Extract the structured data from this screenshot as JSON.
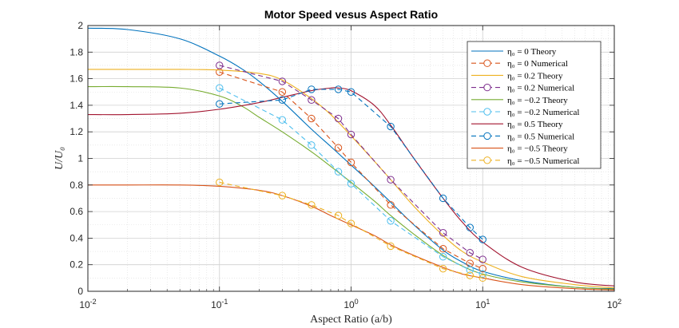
{
  "chart_data": {
    "type": "line",
    "title": "Motor Speed vesus Aspect Ratio",
    "xlabel": "Aspect Ratio (a/b)",
    "ylabel": "U/U₀",
    "xscale": "log",
    "xlim": [
      0.01,
      100
    ],
    "ylim": [
      0,
      2
    ],
    "x_ticks": [
      {
        "value": 0.01,
        "base": "10",
        "exp": "-2"
      },
      {
        "value": 0.1,
        "base": "10",
        "exp": "-1"
      },
      {
        "value": 1,
        "base": "10",
        "exp": "0"
      },
      {
        "value": 10,
        "base": "10",
        "exp": "1"
      },
      {
        "value": 100,
        "base": "10",
        "exp": "2"
      }
    ],
    "y_ticks": [
      "0",
      "0.2",
      "0.4",
      "0.6",
      "0.8",
      "1",
      "1.2",
      "1.4",
      "1.6",
      "1.8",
      "2"
    ],
    "grid": true,
    "legend_position": "top-right",
    "series": [
      {
        "name": "η₀ = 0 Theory",
        "color": "#0072BD",
        "style": "solid",
        "x": [
          0.01,
          0.02,
          0.05,
          0.1,
          0.15,
          0.2,
          0.3,
          0.5,
          0.7,
          1,
          1.5,
          2,
          3,
          5,
          7,
          10,
          20,
          50,
          100
        ],
        "y": [
          1.98,
          1.97,
          1.9,
          1.77,
          1.67,
          1.58,
          1.43,
          1.22,
          1.09,
          0.95,
          0.79,
          0.67,
          0.5,
          0.31,
          0.22,
          0.15,
          0.08,
          0.03,
          0.02
        ]
      },
      {
        "name": "η₀ = 0 Numerical",
        "color": "#D95319",
        "style": "dashed",
        "marker": "circle",
        "x": [
          0.1,
          0.3,
          0.5,
          0.8,
          1,
          2,
          5,
          8,
          10
        ],
        "y": [
          1.65,
          1.5,
          1.3,
          1.08,
          0.97,
          0.65,
          0.32,
          0.21,
          0.17
        ]
      },
      {
        "name": "η₀ = 0.2 Theory",
        "color": "#EDB120",
        "style": "solid",
        "x": [
          0.01,
          0.02,
          0.05,
          0.1,
          0.2,
          0.3,
          0.5,
          0.7,
          1,
          1.5,
          2,
          3,
          5,
          7,
          10,
          20,
          50,
          100
        ],
        "y": [
          1.67,
          1.67,
          1.67,
          1.665,
          1.64,
          1.59,
          1.45,
          1.33,
          1.17,
          0.98,
          0.84,
          0.64,
          0.42,
          0.3,
          0.22,
          0.11,
          0.05,
          0.025
        ]
      },
      {
        "name": "η₀ = 0.2 Numerical",
        "color": "#7E2F8E",
        "style": "dashed",
        "marker": "circle",
        "x": [
          0.1,
          0.3,
          0.5,
          0.8,
          1,
          2,
          5,
          8,
          10
        ],
        "y": [
          1.7,
          1.58,
          1.44,
          1.3,
          1.18,
          0.84,
          0.44,
          0.29,
          0.24
        ]
      },
      {
        "name": "η₀ = −0.2 Theory",
        "color": "#77AC30",
        "style": "solid",
        "x": [
          0.01,
          0.02,
          0.05,
          0.1,
          0.15,
          0.2,
          0.3,
          0.5,
          0.7,
          1,
          1.5,
          2,
          3,
          5,
          7,
          10,
          20,
          50,
          100
        ],
        "y": [
          1.54,
          1.54,
          1.53,
          1.47,
          1.39,
          1.31,
          1.2,
          1.05,
          0.94,
          0.82,
          0.68,
          0.57,
          0.43,
          0.27,
          0.19,
          0.13,
          0.07,
          0.03,
          0.015
        ]
      },
      {
        "name": "η₀ = −0.2 Numerical",
        "color": "#4DBEEE",
        "style": "dashed",
        "marker": "circle",
        "x": [
          0.1,
          0.3,
          0.5,
          0.8,
          1,
          2,
          5,
          8,
          10
        ],
        "y": [
          1.53,
          1.29,
          1.1,
          0.9,
          0.81,
          0.53,
          0.26,
          0.16,
          0.13
        ]
      },
      {
        "name": "η₀ = 0.5 Theory",
        "color": "#A2142F",
        "style": "solid",
        "x": [
          0.01,
          0.02,
          0.05,
          0.1,
          0.2,
          0.3,
          0.5,
          0.7,
          0.8,
          1,
          1.5,
          2,
          3,
          5,
          7,
          10,
          20,
          50,
          100
        ],
        "y": [
          1.33,
          1.33,
          1.34,
          1.37,
          1.42,
          1.46,
          1.51,
          1.53,
          1.53,
          1.51,
          1.4,
          1.25,
          1.0,
          0.7,
          0.52,
          0.37,
          0.18,
          0.07,
          0.04
        ]
      },
      {
        "name": "η₀ = 0.5 Numerical",
        "color": "#0072BD",
        "style": "dashed",
        "marker": "circle",
        "x": [
          0.1,
          0.3,
          0.5,
          0.8,
          1,
          2,
          5,
          8,
          10
        ],
        "y": [
          1.41,
          1.44,
          1.52,
          1.52,
          1.5,
          1.24,
          0.7,
          0.48,
          0.39
        ]
      },
      {
        "name": "η₀ = −0.5 Theory",
        "color": "#D95319",
        "style": "solid",
        "x": [
          0.01,
          0.02,
          0.05,
          0.1,
          0.2,
          0.3,
          0.5,
          0.7,
          1,
          1.5,
          2,
          3,
          5,
          7,
          10,
          20,
          50,
          100
        ],
        "y": [
          0.8,
          0.8,
          0.8,
          0.79,
          0.76,
          0.72,
          0.64,
          0.57,
          0.5,
          0.42,
          0.35,
          0.27,
          0.18,
          0.13,
          0.1,
          0.05,
          0.02,
          0.01
        ]
      },
      {
        "name": "η₀ = −0.5 Numerical",
        "color": "#EDB120",
        "style": "dashed",
        "marker": "circle",
        "x": [
          0.1,
          0.3,
          0.5,
          0.8,
          1,
          2,
          5,
          8,
          10
        ],
        "y": [
          0.82,
          0.72,
          0.65,
          0.57,
          0.51,
          0.34,
          0.17,
          0.12,
          0.1
        ]
      }
    ]
  }
}
